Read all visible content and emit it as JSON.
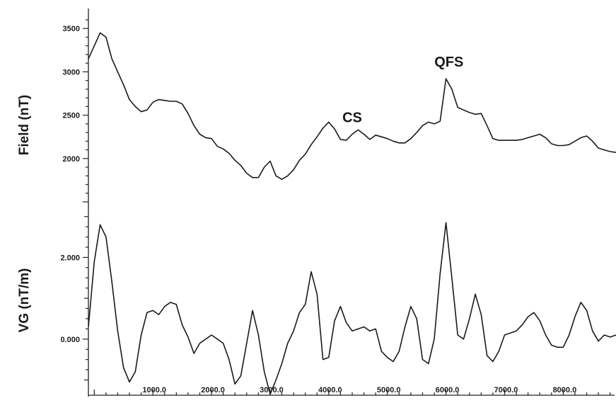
{
  "chart_data": [
    {
      "type": "line",
      "ylabel": "Field (nT)",
      "xlim": [
        -100,
        8900
      ],
      "ylim": [
        1500,
        3600
      ],
      "yticks": [
        2000,
        2500,
        3000,
        3500
      ],
      "ytick_labels": [
        "2000",
        "2500",
        "3000",
        "3500"
      ],
      "annotations": [
        {
          "text": "CS",
          "x": 4400,
          "y": 2420
        },
        {
          "text": "QFS",
          "x": 6050,
          "y": 3060
        }
      ],
      "series": [
        {
          "x": [
            -100,
            0,
            100,
            200,
            300,
            400,
            500,
            600,
            700,
            800,
            900,
            1000,
            1100,
            1200,
            1300,
            1400,
            1500,
            1600,
            1700,
            1800,
            1900,
            2000,
            2100,
            2200,
            2300,
            2400,
            2500,
            2600,
            2700,
            2800,
            2900,
            3000,
            3100,
            3200,
            3300,
            3400,
            3500,
            3600,
            3700,
            3800,
            3900,
            4000,
            4100,
            4200,
            4300,
            4400,
            4500,
            4600,
            4700,
            4800,
            4900,
            5000,
            5100,
            5200,
            5300,
            5400,
            5500,
            5600,
            5700,
            5800,
            5900,
            6000,
            6100,
            6200,
            6300,
            6400,
            6500,
            6600,
            6700,
            6800,
            6900,
            7000,
            7100,
            7200,
            7300,
            7400,
            7500,
            7600,
            7700,
            7800,
            7900,
            8000,
            8100,
            8200,
            8300,
            8400,
            8500,
            8600,
            8700,
            8800,
            8900
          ],
          "values": [
            3150,
            3300,
            3450,
            3400,
            3150,
            3000,
            2850,
            2680,
            2600,
            2540,
            2560,
            2650,
            2680,
            2670,
            2660,
            2660,
            2630,
            2520,
            2380,
            2280,
            2240,
            2230,
            2140,
            2110,
            2060,
            1980,
            1920,
            1830,
            1780,
            1780,
            1900,
            1970,
            1800,
            1760,
            1800,
            1870,
            1980,
            2050,
            2160,
            2250,
            2350,
            2420,
            2340,
            2220,
            2210,
            2280,
            2330,
            2280,
            2220,
            2270,
            2250,
            2230,
            2200,
            2180,
            2180,
            2230,
            2300,
            2380,
            2420,
            2400,
            2430,
            2920,
            2800,
            2590,
            2560,
            2530,
            2510,
            2520,
            2380,
            2230,
            2210,
            2210,
            2210,
            2210,
            2220,
            2240,
            2260,
            2280,
            2240,
            2170,
            2150,
            2150,
            2160,
            2200,
            2240,
            2260,
            2200,
            2120,
            2100,
            2080,
            2070
          ]
        }
      ]
    },
    {
      "type": "line",
      "ylabel": "VG (nT/m)",
      "xlim": [
        -100,
        8900
      ],
      "ylim": [
        -1.2,
        3.1
      ],
      "yticks": [
        0.0,
        2.0
      ],
      "ytick_labels": [
        "0.000",
        "2.000"
      ],
      "xticks": [
        1000,
        2000,
        3000,
        4000,
        5000,
        6000,
        7000,
        8000
      ],
      "xtick_labels": [
        "1000.0",
        "2000.0",
        "3000.0",
        "4000.0",
        "5000.0",
        "6000.0",
        "7000.0",
        "8000.0"
      ],
      "series": [
        {
          "x": [
            -100,
            0,
            100,
            200,
            300,
            400,
            500,
            600,
            700,
            800,
            900,
            1000,
            1100,
            1200,
            1300,
            1400,
            1500,
            1600,
            1700,
            1800,
            1900,
            2000,
            2100,
            2200,
            2300,
            2400,
            2500,
            2600,
            2700,
            2800,
            2900,
            3000,
            3100,
            3200,
            3300,
            3400,
            3500,
            3600,
            3700,
            3800,
            3900,
            4000,
            4100,
            4200,
            4300,
            4400,
            4500,
            4600,
            4700,
            4800,
            4900,
            5000,
            5100,
            5200,
            5300,
            5400,
            5500,
            5600,
            5700,
            5800,
            5900,
            6000,
            6100,
            6200,
            6300,
            6400,
            6500,
            6600,
            6700,
            6800,
            6900,
            7000,
            7100,
            7200,
            7300,
            7400,
            7500,
            7600,
            7700,
            7800,
            7900,
            8000,
            8100,
            8200,
            8300,
            8400,
            8500,
            8600,
            8700,
            8800,
            8900
          ],
          "values": [
            0.3,
            1.9,
            2.8,
            2.5,
            1.4,
            0.2,
            -0.7,
            -1.05,
            -0.8,
            0.1,
            0.65,
            0.7,
            0.6,
            0.8,
            0.9,
            0.85,
            0.35,
            0.05,
            -0.35,
            -0.1,
            0.0,
            0.1,
            0.0,
            -0.1,
            -0.5,
            -1.1,
            -0.9,
            -0.1,
            0.7,
            0.1,
            -0.8,
            -1.35,
            -1.0,
            -0.6,
            -0.1,
            0.2,
            0.65,
            0.85,
            1.65,
            1.1,
            -0.5,
            -0.45,
            0.45,
            0.8,
            0.4,
            0.2,
            0.25,
            0.3,
            0.2,
            0.25,
            -0.3,
            -0.45,
            -0.55,
            -0.3,
            0.3,
            0.8,
            0.5,
            -0.5,
            -0.6,
            0.0,
            1.6,
            2.85,
            1.5,
            0.1,
            0.0,
            0.5,
            1.1,
            0.6,
            -0.4,
            -0.55,
            -0.3,
            0.1,
            0.15,
            0.2,
            0.35,
            0.55,
            0.65,
            0.45,
            0.1,
            -0.15,
            -0.2,
            -0.2,
            0.1,
            0.55,
            0.9,
            0.7,
            0.2,
            -0.05,
            0.1,
            0.05,
            0.1
          ]
        }
      ]
    }
  ]
}
